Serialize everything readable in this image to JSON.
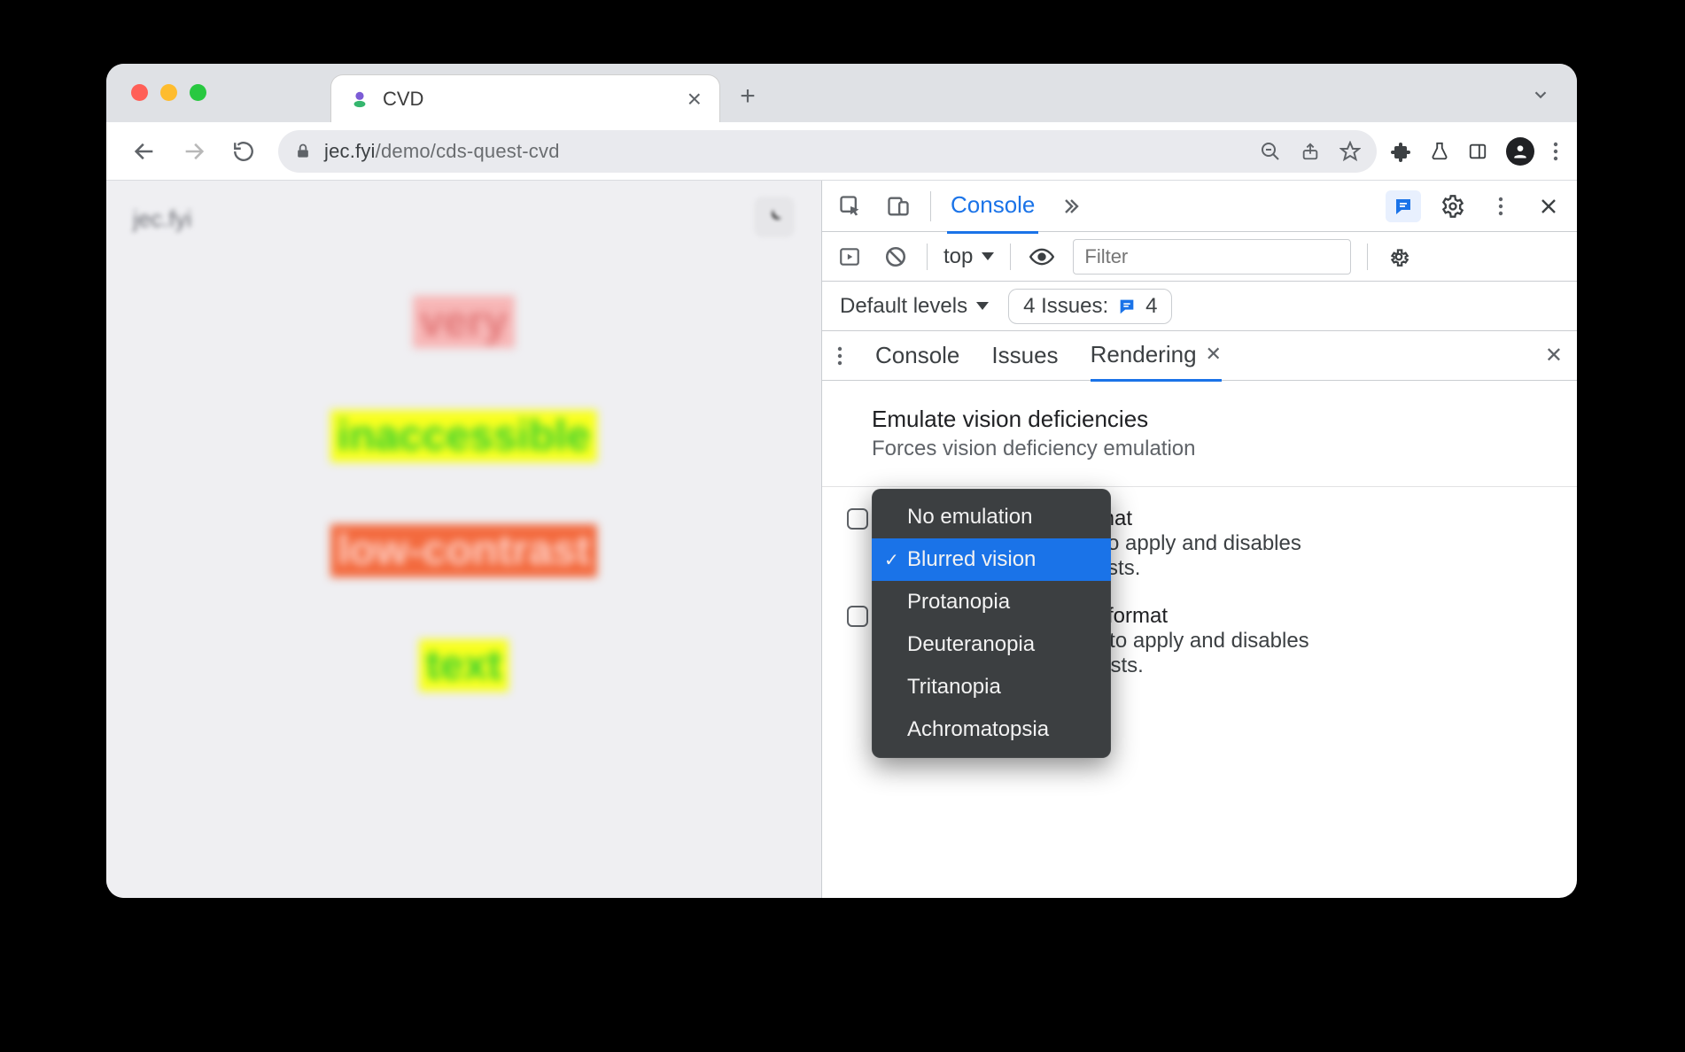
{
  "browser": {
    "tab_title": "CVD",
    "url_host": "jec.fyi",
    "url_path": "/demo/cds-quest-cvd"
  },
  "page": {
    "site_label": "jec.fyi",
    "words": [
      {
        "text": "very",
        "bg": "#f7b6b6",
        "fg": "#e27777"
      },
      {
        "text": "inaccessible",
        "bg": "#f8ff1f",
        "fg": "#2fcf2f"
      },
      {
        "text": "low-contrast",
        "bg": "#f36a3e",
        "fg": "#ffd2c8"
      },
      {
        "text": "text",
        "bg": "#f8ff1f",
        "fg": "#2fcf2f"
      }
    ]
  },
  "devtools": {
    "main_tab": "Console",
    "context": "top",
    "filter_placeholder": "Filter",
    "levels_label": "Default levels",
    "issues_label": "4 Issues:",
    "issues_count": "4",
    "drawer_tabs": {
      "console": "Console",
      "issues": "Issues",
      "rendering": "Rendering"
    },
    "section": {
      "title": "Emulate vision deficiencies",
      "subtitle": "Forces vision deficiency emulation"
    },
    "option1": {
      "right": "format",
      "line": "ad to apply and disables",
      "line2": "quests."
    },
    "option2": {
      "right": "format",
      "line": "Requires a page reload to apply and disables",
      "line2": "caching for image requests."
    },
    "dropdown": {
      "items": [
        "No emulation",
        "Blurred vision",
        "Protanopia",
        "Deuteranopia",
        "Tritanopia",
        "Achromatopsia"
      ],
      "selected_index": 1
    }
  },
  "colors": {
    "accent": "#1a73e8"
  }
}
